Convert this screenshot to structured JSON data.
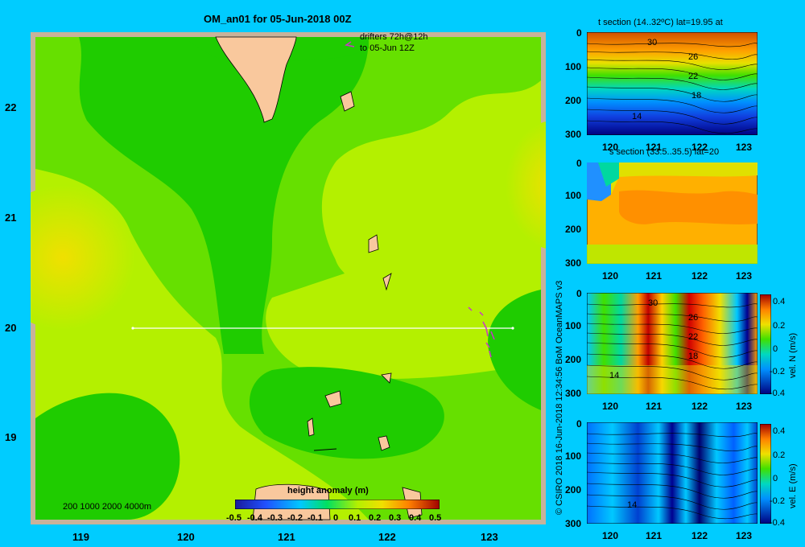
{
  "main": {
    "title": "OM_an01 for 05-Jun-2018 00Z",
    "drifters_line1": "drifters 72h@12h",
    "drifters_line2": "to 05-Jun 12Z",
    "depth_legend": "200  1000  2000  4000m",
    "x_ticks": [
      "119",
      "120",
      "121",
      "122",
      "123"
    ],
    "y_ticks": [
      "22",
      "21",
      "20",
      "19"
    ],
    "colorbar_title": "height anomaly  (m)",
    "colorbar_ticks": [
      "-0.5",
      "-0.4",
      "-0.3",
      "-0.2",
      "-0.1",
      "0",
      "0.1",
      "0.2",
      "0.3",
      "0.4",
      "0.5"
    ]
  },
  "credit": "© CSIRO 2018   16-Jun-2018 12:34:56 BoM OceanMAPS v3",
  "sections": [
    {
      "title": "t section (14..32ºC) lat=19.95 at",
      "y_ticks": [
        "0",
        "100",
        "200",
        "300"
      ],
      "x_ticks": [
        "120",
        "121",
        "122",
        "123"
      ],
      "contour_labels": [
        "30",
        "26",
        "22",
        "18",
        "14"
      ]
    },
    {
      "title": "s section (33.5..35.5) lat=20",
      "y_ticks": [
        "0",
        "100",
        "200",
        "300"
      ],
      "x_ticks": [
        "120",
        "121",
        "122",
        "123"
      ]
    },
    {
      "title": "",
      "y_ticks": [
        "0",
        "100",
        "200",
        "300"
      ],
      "x_ticks": [
        "120",
        "121",
        "122",
        "123"
      ],
      "contour_labels": [
        "30",
        "26",
        "22",
        "18",
        "14"
      ],
      "colorbar_label": "vel. N  (m/s)",
      "colorbar_ticks": [
        "0.4",
        "0.2",
        "0",
        "-0.2",
        "-0.4"
      ]
    },
    {
      "title": "",
      "y_ticks": [
        "0",
        "100",
        "200",
        "300"
      ],
      "x_ticks": [
        "120",
        "121",
        "122",
        "123"
      ],
      "contour_labels": [
        "14"
      ],
      "colorbar_label": "vel. E  (m/s)",
      "colorbar_ticks": [
        "0.4",
        "0.2",
        "0",
        "-0.2",
        "-0.4"
      ]
    }
  ],
  "chart_data": [
    {
      "type": "heatmap",
      "title": "OM_an01 for 05-Jun-2018 00Z",
      "xlabel": "",
      "ylabel": "",
      "x_range": [
        118.5,
        123.5
      ],
      "y_range": [
        18.3,
        22.7
      ],
      "colorbar_range": [
        -0.5,
        0.5
      ],
      "section_line": {
        "lat": 20,
        "lon_from": 119.5,
        "lon_to": 123.2
      },
      "colors": {
        "green": "#1fcc00",
        "light_green": "#66e000",
        "yellow_green": "#b4f000",
        "yellow": "#f0e000",
        "land": "#f9c89d",
        "shelf": "#c8b29a"
      }
    },
    {
      "type": "heatmap",
      "title": "t section (14..32ºC) lat=19.95 at",
      "x_range": [
        119.5,
        123.2
      ],
      "y_range": [
        0,
        300
      ],
      "y_inverted": true
    },
    {
      "type": "heatmap",
      "title": "s section (33.5..35.5) lat=20",
      "x_range": [
        119.5,
        123.2
      ],
      "y_range": [
        0,
        300
      ],
      "y_inverted": true
    },
    {
      "type": "heatmap",
      "title": "",
      "x_range": [
        119.5,
        123.2
      ],
      "y_range": [
        0,
        300
      ],
      "y_inverted": true,
      "colorbar_range": [
        -0.4,
        0.4
      ]
    },
    {
      "type": "heatmap",
      "title": "",
      "x_range": [
        119.5,
        123.2
      ],
      "y_range": [
        0,
        300
      ],
      "y_inverted": true,
      "colorbar_range": [
        -0.4,
        0.4
      ]
    }
  ]
}
